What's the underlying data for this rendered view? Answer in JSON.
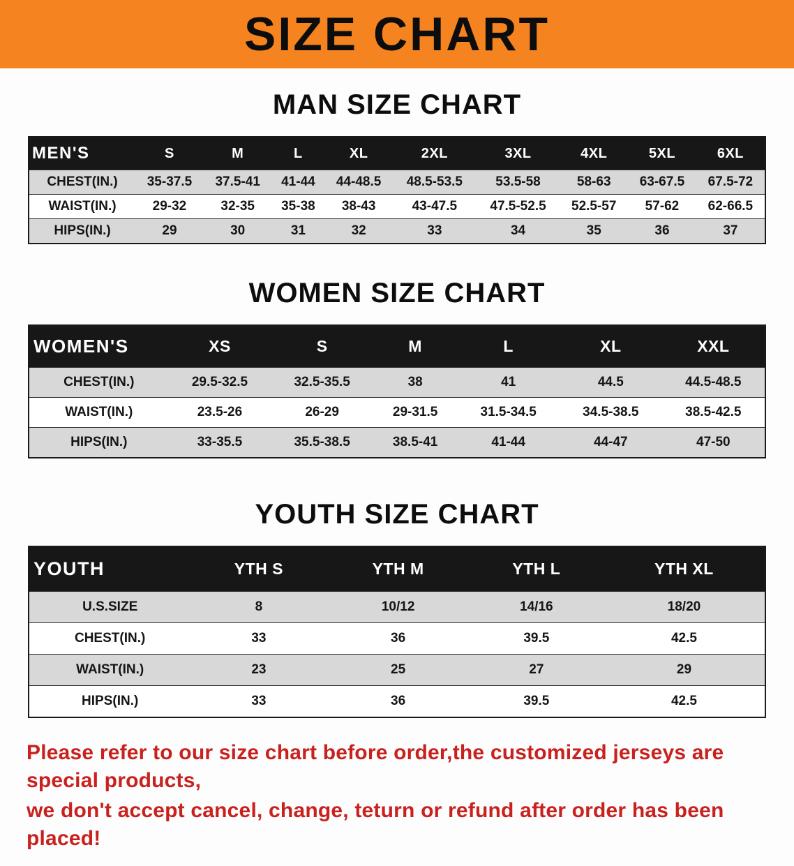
{
  "banner": {
    "title": "SIZE CHART",
    "bg_color": "#f5831f"
  },
  "sections": [
    {
      "heading": "MAN SIZE CHART",
      "table": {
        "header": [
          "MEN'S",
          "S",
          "M",
          "L",
          "XL",
          "2XL",
          "3XL",
          "4XL",
          "5XL",
          "6XL"
        ],
        "rows": [
          {
            "label": "CHEST(IN.)",
            "values": [
              "35-37.5",
              "37.5-41",
              "41-44",
              "44-48.5",
              "48.5-53.5",
              "53.5-58",
              "58-63",
              "63-67.5",
              "67.5-72"
            ]
          },
          {
            "label": "WAIST(IN.)",
            "values": [
              "29-32",
              "32-35",
              "35-38",
              "38-43",
              "43-47.5",
              "47.5-52.5",
              "52.5-57",
              "57-62",
              "62-66.5"
            ]
          },
          {
            "label": "HIPS(IN.)",
            "values": [
              "29",
              "30",
              "31",
              "32",
              "33",
              "34",
              "35",
              "36",
              "37"
            ]
          }
        ]
      }
    },
    {
      "heading": "WOMEN SIZE CHART",
      "table": {
        "header": [
          "WOMEN'S",
          "XS",
          "S",
          "M",
          "L",
          "XL",
          "XXL"
        ],
        "rows": [
          {
            "label": "CHEST(IN.)",
            "values": [
              "29.5-32.5",
              "32.5-35.5",
              "38",
              "41",
              "44.5",
              "44.5-48.5"
            ]
          },
          {
            "label": "WAIST(IN.)",
            "values": [
              "23.5-26",
              "26-29",
              "29-31.5",
              "31.5-34.5",
              "34.5-38.5",
              "38.5-42.5"
            ]
          },
          {
            "label": "HIPS(IN.)",
            "values": [
              "33-35.5",
              "35.5-38.5",
              "38.5-41",
              "41-44",
              "44-47",
              "47-50"
            ]
          }
        ]
      }
    },
    {
      "heading": "YOUTH SIZE CHART",
      "table": {
        "header": [
          "YOUTH",
          "YTH S",
          "YTH M",
          "YTH L",
          "YTH XL"
        ],
        "rows": [
          {
            "label": "U.S.SIZE",
            "values": [
              "8",
              "10/12",
              "14/16",
              "18/20"
            ]
          },
          {
            "label": "CHEST(IN.)",
            "values": [
              "33",
              "36",
              "39.5",
              "42.5"
            ]
          },
          {
            "label": "WAIST(IN.)",
            "values": [
              "23",
              "25",
              "27",
              "29"
            ]
          },
          {
            "label": "HIPS(IN.)",
            "values": [
              "33",
              "36",
              "39.5",
              "42.5"
            ]
          }
        ]
      }
    }
  ],
  "footer": {
    "lines": [
      "Please refer to our size chart before order,the customized jerseys are special products,",
      "we don't accept cancel, change, teturn or refund after order has been placed!"
    ],
    "text_color": "#c9211e"
  }
}
